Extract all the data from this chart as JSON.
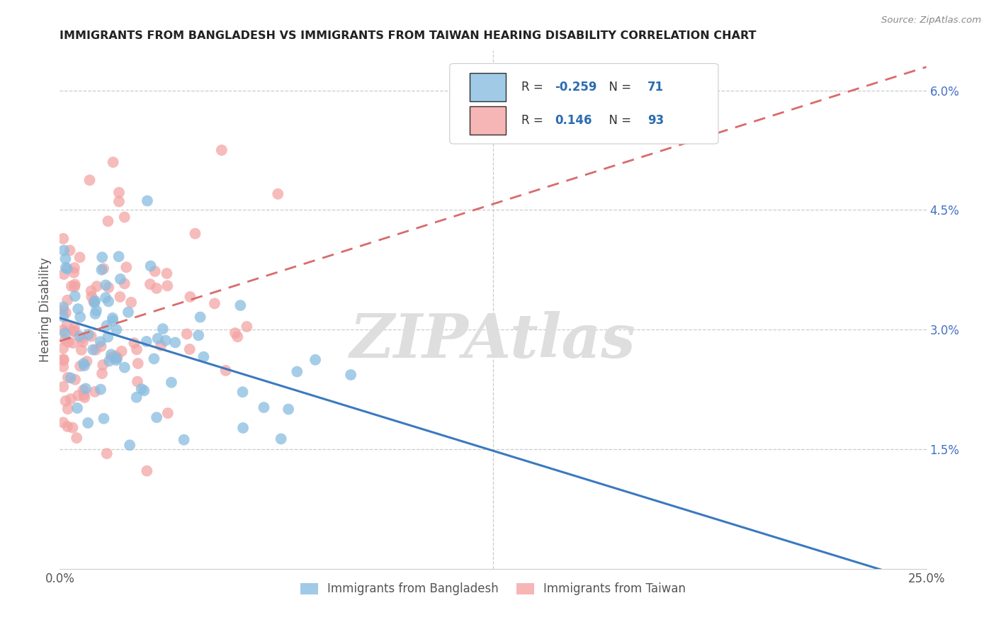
{
  "title": "IMMIGRANTS FROM BANGLADESH VS IMMIGRANTS FROM TAIWAN HEARING DISABILITY CORRELATION CHART",
  "source": "Source: ZipAtlas.com",
  "ylabel": "Hearing Disability",
  "xlim": [
    0.0,
    0.25
  ],
  "ylim": [
    0.0,
    0.065
  ],
  "legend_r_blue": "-0.259",
  "legend_n_blue": "71",
  "legend_r_pink": "0.146",
  "legend_n_pink": "93",
  "watermark": "ZIPAtlas",
  "blue_color": "#89bde0",
  "pink_color": "#f4a4a4",
  "blue_line_color": "#3a7abf",
  "pink_line_color": "#d96b6b",
  "grid_color": "#cccccc",
  "tick_color": "#555555",
  "right_tick_color": "#4472c4",
  "title_color": "#222222",
  "source_color": "#888888",
  "legend_border_color": "#cccccc",
  "bottom_legend_blue": "Immigrants from Bangladesh",
  "bottom_legend_pink": "Immigrants from Taiwan"
}
